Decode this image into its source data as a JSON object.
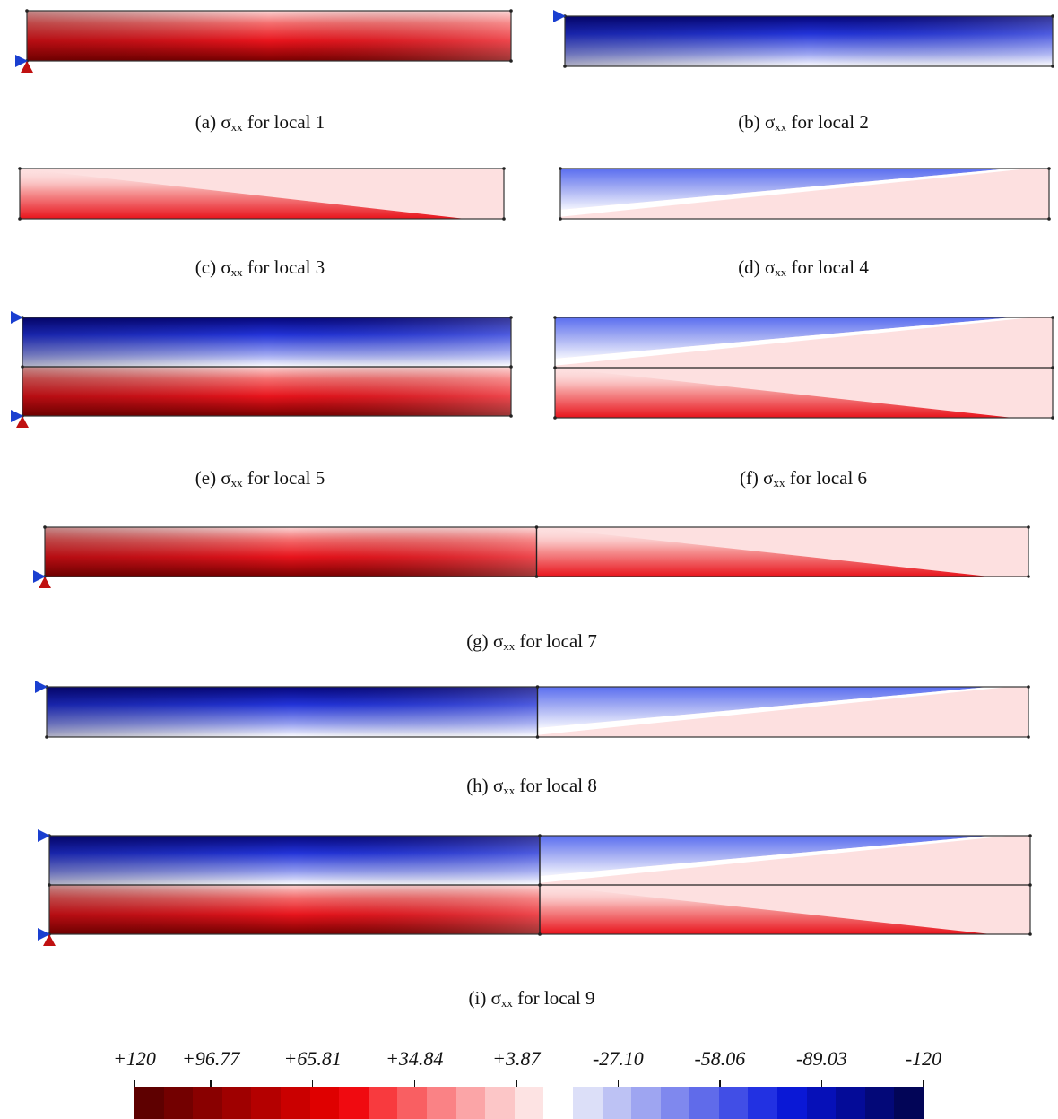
{
  "colors": {
    "tension_dark": "#7a0000",
    "tension": "#e8141c",
    "tension_light": "#fde0e0",
    "neutral": "#ffffff",
    "compression": "#5a6ef0",
    "compression_dark": "#06067a",
    "support_pin": "#c01010",
    "support_roller": "#1a3fd0",
    "outline": "#333333"
  },
  "panels": [
    {
      "id": "a",
      "caption_prefix": "(a)",
      "sigma": "σ",
      "sub": "xx",
      "caption_suffix": "for local 1",
      "rows": [
        "top"
      ],
      "segments": [
        [
          "red-uniform"
        ]
      ],
      "supports": [
        "pin-bottom"
      ]
    },
    {
      "id": "b",
      "caption_prefix": "(b)",
      "sigma": "σ",
      "sub": "xx",
      "caption_suffix": "for local 2",
      "rows": [
        "top"
      ],
      "segments": [
        [
          "blue-uniform"
        ]
      ],
      "supports": [
        "roller-top"
      ]
    },
    {
      "id": "c",
      "caption_prefix": "(c)",
      "sigma": "σ",
      "sub": "xx",
      "caption_suffix": "for local 3",
      "rows": [
        "top"
      ],
      "segments": [
        [
          "red-taper"
        ]
      ],
      "supports": []
    },
    {
      "id": "d",
      "caption_prefix": "(d)",
      "sigma": "σ",
      "sub": "xx",
      "caption_suffix": "for local 4",
      "rows": [
        "top"
      ],
      "segments": [
        [
          "blue-taper"
        ]
      ],
      "supports": []
    },
    {
      "id": "e",
      "caption_prefix": "(e)",
      "sigma": "σ",
      "sub": "xx",
      "caption_suffix": "for local 5",
      "rows": [
        "top",
        "bottom"
      ],
      "segments": [
        [
          "blue-uniform"
        ],
        [
          "red-uniform"
        ]
      ],
      "supports": [
        "roller-top",
        "pin-bottom"
      ]
    },
    {
      "id": "f",
      "caption_prefix": "(f)",
      "sigma": "σ",
      "sub": "xx",
      "caption_suffix": "for local 6",
      "rows": [
        "top",
        "bottom"
      ],
      "segments": [
        [
          "blue-taper"
        ],
        [
          "red-taper"
        ]
      ],
      "supports": []
    },
    {
      "id": "g",
      "caption_prefix": "(g)",
      "sigma": "σ",
      "sub": "xx",
      "caption_suffix": "for local 7",
      "rows": [
        "top"
      ],
      "segments": [
        [
          "red-uniform",
          "red-taper"
        ]
      ],
      "supports": [
        "pin-bottom"
      ]
    },
    {
      "id": "h",
      "caption_prefix": "(h)",
      "sigma": "σ",
      "sub": "xx",
      "caption_suffix": "for local 8",
      "rows": [
        "top"
      ],
      "segments": [
        [
          "blue-uniform",
          "blue-taper"
        ]
      ],
      "supports": [
        "roller-top"
      ]
    },
    {
      "id": "i",
      "caption_prefix": "(i)",
      "sigma": "σ",
      "sub": "xx",
      "caption_suffix": "for local 9",
      "rows": [
        "top",
        "bottom"
      ],
      "segments": [
        [
          "blue-uniform",
          "blue-taper"
        ],
        [
          "red-uniform",
          "red-taper"
        ]
      ],
      "supports": [
        "roller-top",
        "pin-bottom"
      ]
    }
  ],
  "colorbar": {
    "labels": [
      "+120",
      "+96.77",
      "+65.81",
      "+34.84",
      "+3.87",
      "-27.10",
      "-58.06",
      "-89.03",
      "-120"
    ],
    "values": [
      120,
      96.77,
      65.81,
      34.84,
      3.87,
      -27.1,
      -58.06,
      -89.03,
      -120
    ],
    "range": [
      120,
      -120
    ],
    "swatches": [
      "#5e0000",
      "#730000",
      "#890000",
      "#9f0000",
      "#b40000",
      "#ca0000",
      "#df0000",
      "#f00a10",
      "#f83a3e",
      "#f95f62",
      "#fa8285",
      "#fba5a7",
      "#fcc6c7",
      "#fde3e3",
      "#ffffff",
      "#dcdff8",
      "#bdc2f4",
      "#9ea5f1",
      "#7f88ee",
      "#606bea",
      "#414ee6",
      "#2231e2",
      "#0a18d6",
      "#0610b8",
      "#040b98",
      "#030878",
      "#020557"
    ]
  }
}
